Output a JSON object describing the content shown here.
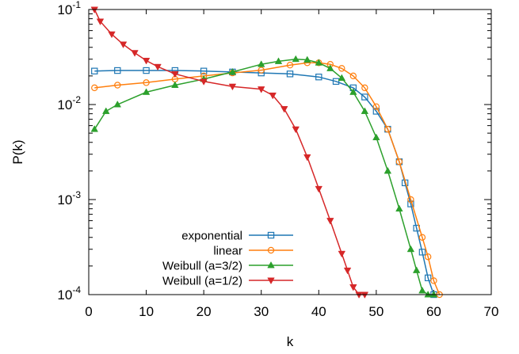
{
  "chart_data": {
    "type": "line",
    "xlabel": "k",
    "ylabel": "P(k)",
    "xlim": [
      0,
      70
    ],
    "ylim": [
      0.0001,
      0.1
    ],
    "yscale": "log",
    "grid": false,
    "legend_position": "bottom-left",
    "x_ticks": [
      "0",
      "10",
      "20",
      "30",
      "40",
      "50",
      "60",
      "70"
    ],
    "x_tick_values": [
      0,
      10,
      20,
      30,
      40,
      50,
      60,
      70
    ],
    "y_ticks": [
      {
        "value": 0.0001,
        "base": "10",
        "exp": "-4"
      },
      {
        "value": 0.001,
        "base": "10",
        "exp": "-3"
      },
      {
        "value": 0.01,
        "base": "10",
        "exp": "-2"
      },
      {
        "value": 0.1,
        "base": "10",
        "exp": "-1"
      }
    ],
    "series": [
      {
        "name": "exponential",
        "color": "#1f77b4",
        "marker": "square-open",
        "x": [
          1,
          5,
          10,
          15,
          20,
          25,
          30,
          35,
          40,
          43,
          46,
          48,
          50,
          52,
          54,
          55,
          56,
          57,
          58,
          59,
          60
        ],
        "y": [
          0.0225,
          0.0228,
          0.0228,
          0.0228,
          0.0225,
          0.022,
          0.0215,
          0.021,
          0.0195,
          0.0175,
          0.015,
          0.012,
          0.0085,
          0.0055,
          0.0025,
          0.0015,
          0.0009,
          0.0005,
          0.00028,
          0.00015,
          0.0001
        ]
      },
      {
        "name": "linear",
        "color": "#ff7f0e",
        "marker": "circle-open",
        "x": [
          1,
          5,
          10,
          15,
          20,
          25,
          30,
          35,
          38,
          40,
          42,
          44,
          46,
          48,
          50,
          52,
          54,
          56,
          58,
          59,
          60,
          61
        ],
        "y": [
          0.015,
          0.016,
          0.017,
          0.0185,
          0.02,
          0.0215,
          0.023,
          0.026,
          0.0275,
          0.0275,
          0.0265,
          0.024,
          0.02,
          0.015,
          0.0095,
          0.0055,
          0.0025,
          0.001,
          0.0004,
          0.00025,
          0.00014,
          0.0001
        ]
      },
      {
        "name": "Weibull (a=3/2)",
        "color": "#2ca02c",
        "marker": "triangle-up",
        "x": [
          1,
          3,
          5,
          10,
          15,
          20,
          25,
          30,
          33,
          36,
          38,
          40,
          42,
          44,
          46,
          48,
          50,
          52,
          54,
          56,
          57,
          58,
          59,
          60
        ],
        "y": [
          0.0055,
          0.0085,
          0.01,
          0.0135,
          0.016,
          0.0185,
          0.022,
          0.0265,
          0.0285,
          0.03,
          0.0295,
          0.0275,
          0.024,
          0.019,
          0.0135,
          0.0085,
          0.0045,
          0.002,
          0.0008,
          0.0003,
          0.00018,
          0.00011,
          0.0001,
          0.0001
        ]
      },
      {
        "name": "Weibull (a=1/2)",
        "color": "#d62728",
        "marker": "triangle-down",
        "x": [
          1,
          2,
          4,
          6,
          8,
          10,
          12,
          15,
          20,
          25,
          30,
          32,
          34,
          36,
          38,
          40,
          42,
          44,
          45,
          46,
          47,
          48
        ],
        "y": [
          0.1,
          0.075,
          0.055,
          0.043,
          0.035,
          0.029,
          0.025,
          0.021,
          0.0175,
          0.0155,
          0.0145,
          0.0125,
          0.009,
          0.0055,
          0.0028,
          0.0013,
          0.0006,
          0.00027,
          0.00018,
          0.00012,
          0.0001,
          0.0001
        ]
      }
    ]
  }
}
